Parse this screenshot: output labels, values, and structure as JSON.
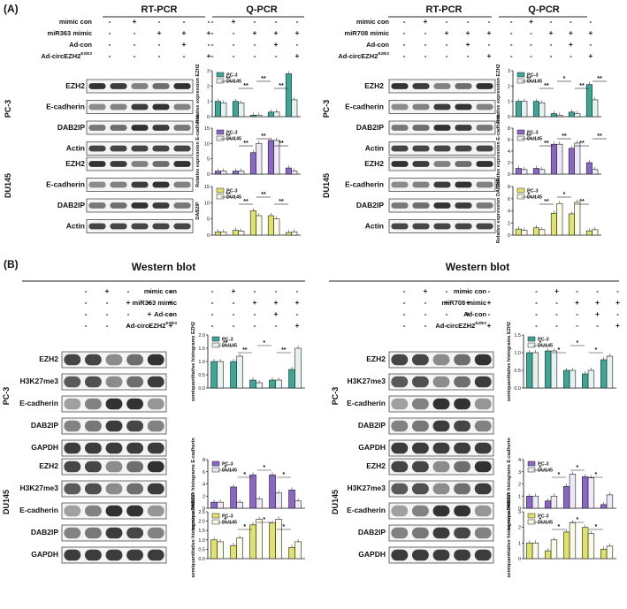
{
  "panel_labels": [
    "(A)",
    "(B)"
  ],
  "rt_pcr_title": "RT-PCR",
  "q_pcr_title": "Q-PCR",
  "western_title": "Western blot",
  "legend": [
    "PC-3",
    "DU145"
  ],
  "cell_lines": [
    "PC-3",
    "DU145"
  ],
  "y_axis_rel": "Relative expression",
  "y_axis_semi": "semiquantitative histograms",
  "top_left": {
    "treatments": [
      {
        "label": "mimic con",
        "signs": [
          "-",
          "+",
          "-",
          "-",
          "-"
        ]
      },
      {
        "label": "miR363 mimic",
        "signs": [
          "-",
          "-",
          "+",
          "+",
          "+"
        ]
      },
      {
        "label": "Ad-con",
        "signs": [
          "-",
          "-",
          "-",
          "+",
          "-"
        ]
      },
      {
        "label": "Ad-circEZH2E2/E3",
        "signs": [
          "-",
          "-",
          "-",
          "-",
          "+"
        ]
      }
    ]
  },
  "top_right": {
    "treatments": [
      {
        "label": "mimic con",
        "signs": [
          "-",
          "+",
          "-",
          "-",
          "-"
        ]
      },
      {
        "label": "miR708 mimic",
        "signs": [
          "-",
          "-",
          "+",
          "+",
          "+"
        ]
      },
      {
        "label": "Ad-con",
        "signs": [
          "-",
          "-",
          "-",
          "+",
          "-"
        ]
      },
      {
        "label": "Ad-circEZH2E2/E3",
        "signs": [
          "-",
          "-",
          "-",
          "-",
          "+"
        ]
      }
    ]
  },
  "bottom_left": {
    "treatments": [
      {
        "label": "mimic con",
        "signs": [
          "-",
          "+",
          "-",
          "-",
          "-"
        ]
      },
      {
        "label": "miR363 mimic",
        "signs": [
          "-",
          "-",
          "+",
          "+",
          "+"
        ]
      },
      {
        "label": "Ad-con",
        "signs": [
          "-",
          "-",
          "-",
          "+",
          "-"
        ]
      },
      {
        "label": "Ad-circEZH2E2/E3",
        "signs": [
          "-",
          "-",
          "-",
          "-",
          "+"
        ]
      }
    ]
  },
  "bottom_right": {
    "treatments": [
      {
        "label": "mimic con",
        "signs": [
          "-",
          "+",
          "-",
          "-",
          "-"
        ]
      },
      {
        "label": "miR708 mimic",
        "signs": [
          "-",
          "-",
          "+",
          "+",
          "+"
        ]
      },
      {
        "label": "Ad-con",
        "signs": [
          "-",
          "-",
          "-",
          "+",
          "-"
        ]
      },
      {
        "label": "Ad-circEZH2E2/E3",
        "signs": [
          "-",
          "-",
          "-",
          "-",
          "+"
        ]
      }
    ]
  },
  "pcr_genes": [
    "EZH2",
    "E-cadherin",
    "DAB2IP",
    "Actin"
  ],
  "wb_pc3_genes": [
    "EZH2",
    "H3K27me3",
    "E-cadherin",
    "DAB2IP",
    "GAPDH"
  ],
  "wb_du_genes": [
    "EZH2",
    "H3K27me3",
    "E-cadherin",
    "DAB2IP",
    "GAPDH"
  ],
  "chart_data": [
    {
      "type": "bar",
      "ylabel": "Relative expression EZH2",
      "ylim": [
        0,
        3
      ],
      "yticks": [
        "0",
        "1",
        "2",
        "3"
      ],
      "series": [
        {
          "name": "PC-3",
          "values": [
            1.0,
            1.0,
            0.1,
            0.3,
            2.8
          ]
        },
        {
          "name": "DU145",
          "values": [
            0.9,
            0.9,
            0.1,
            0.3,
            1.1
          ]
        }
      ],
      "annotations": [
        "**",
        "**",
        "**",
        "**"
      ]
    },
    {
      "type": "bar",
      "ylabel": "Relative expression E-cadherin",
      "ylim": [
        0,
        15
      ],
      "yticks": [
        "0",
        "5",
        "10",
        "15"
      ],
      "series": [
        {
          "name": "PC-3",
          "values": [
            1,
            1,
            7,
            11,
            2
          ]
        },
        {
          "name": "DU145",
          "values": [
            1,
            1,
            10,
            11,
            1
          ]
        }
      ],
      "annotations": [
        "**",
        "**",
        "**",
        "**"
      ]
    },
    {
      "type": "bar",
      "ylabel": "DAB2IP",
      "ylim": [
        0,
        15
      ],
      "yticks": [
        "0",
        "5",
        "10",
        "15"
      ],
      "series": [
        {
          "name": "PC-3",
          "values": [
            1,
            1.5,
            7.5,
            6,
            0.8
          ]
        },
        {
          "name": "DU145",
          "values": [
            1,
            1.2,
            6,
            5,
            1
          ]
        }
      ],
      "annotations": [
        "**",
        "**",
        "**",
        "**"
      ]
    },
    {
      "type": "bar",
      "ylabel": "Relative expression EZH2",
      "ylim": [
        0,
        3
      ],
      "yticks": [
        "0",
        "1",
        "2",
        "3"
      ],
      "series": [
        {
          "name": "PC-3",
          "values": [
            1.0,
            1.0,
            0.2,
            0.3,
            2.1
          ]
        },
        {
          "name": "DU145",
          "values": [
            1.0,
            0.9,
            0.1,
            0.2,
            1.1
          ]
        }
      ],
      "annotations": [
        "**",
        "**",
        "*",
        "**",
        "**"
      ]
    },
    {
      "type": "bar",
      "ylabel": "Relative expression E-cadherin",
      "ylim": [
        0,
        8
      ],
      "yticks": [
        "0",
        "2",
        "4",
        "6",
        "8"
      ],
      "series": [
        {
          "name": "PC-3",
          "values": [
            1,
            1,
            5.2,
            4.5,
            2
          ]
        },
        {
          "name": "DU145",
          "values": [
            0.8,
            0.8,
            5.2,
            5.4,
            0.8
          ]
        }
      ],
      "annotations": [
        "**",
        "**",
        "**",
        "**",
        "**"
      ]
    },
    {
      "type": "bar",
      "ylabel": "Relative expression DAB2IP",
      "ylim": [
        0,
        8
      ],
      "yticks": [
        "0",
        "2",
        "4",
        "6",
        "8"
      ],
      "series": [
        {
          "name": "PC-3",
          "values": [
            1,
            1.2,
            3.6,
            3.5,
            0.7
          ]
        },
        {
          "name": "DU145",
          "values": [
            0.8,
            0.9,
            5.2,
            5.4,
            0.9
          ]
        }
      ],
      "annotations": [
        "*",
        "**",
        "*",
        "**"
      ]
    },
    {
      "type": "bar",
      "ylabel": "semiquantitative histograms EZH2",
      "ylim": [
        0,
        2
      ],
      "yticks": [
        "0.0",
        "0.5",
        "1.0",
        "1.5",
        "2.0"
      ],
      "series": [
        {
          "name": "PC-3",
          "values": [
            1.0,
            1.0,
            0.3,
            0.3,
            0.7
          ]
        },
        {
          "name": "DU145",
          "values": [
            1.0,
            1.2,
            0.2,
            0.3,
            1.5
          ]
        }
      ],
      "annotations": [
        "**",
        "**",
        "*",
        "**"
      ]
    },
    {
      "type": "bar",
      "ylabel": "semiquantitative histograms E-cadherin",
      "ylim": [
        0,
        8
      ],
      "yticks": [
        "0",
        "2",
        "4",
        "6",
        "8"
      ],
      "series": [
        {
          "name": "PC-3",
          "values": [
            1,
            3.5,
            5.5,
            5.5,
            3
          ]
        },
        {
          "name": "DU145",
          "values": [
            1,
            1,
            1.5,
            2.5,
            1.2
          ]
        }
      ],
      "annotations": [
        "*",
        "*",
        "*",
        "*"
      ]
    },
    {
      "type": "bar",
      "ylabel": "semiquantitative histograms DAB2IP",
      "ylim": [
        0,
        2.5
      ],
      "yticks": [
        "0.0",
        "0.5",
        "1.0",
        "1.5",
        "2.0",
        "2.5"
      ],
      "series": [
        {
          "name": "PC-3",
          "values": [
            1.0,
            0.7,
            1.8,
            1.9,
            0.6
          ]
        },
        {
          "name": "DU145",
          "values": [
            0.9,
            1.1,
            2.1,
            2.1,
            0.9
          ]
        }
      ],
      "annotations": [
        "*",
        "*",
        "*",
        "*"
      ]
    },
    {
      "type": "bar",
      "ylabel": "semiquantitative histograms EZH2",
      "ylim": [
        0,
        1.5
      ],
      "yticks": [
        "0.0",
        "0.5",
        "1.0",
        "1.5"
      ],
      "series": [
        {
          "name": "PC-3",
          "values": [
            1.0,
            1.05,
            0.5,
            0.4,
            0.8
          ]
        },
        {
          "name": "DU145",
          "values": [
            1.0,
            1.05,
            0.5,
            0.5,
            0.9
          ]
        }
      ],
      "annotations": [
        "*",
        "*",
        "*",
        "*"
      ]
    },
    {
      "type": "bar",
      "ylabel": "semiquantitative histograms E-cadherin",
      "ylim": [
        0,
        4
      ],
      "yticks": [
        "0",
        "1",
        "2",
        "3",
        "4"
      ],
      "series": [
        {
          "name": "PC-3",
          "values": [
            1,
            0.6,
            1.8,
            2.6,
            0.3
          ]
        },
        {
          "name": "DU145",
          "values": [
            1,
            1,
            2.8,
            2.5,
            1.1
          ]
        }
      ],
      "annotations": [
        "*",
        "*",
        "*",
        "*"
      ]
    },
    {
      "type": "bar",
      "ylabel": "semiquantitative histograms DAB2IP",
      "ylim": [
        0,
        3
      ],
      "yticks": [
        "0",
        "1",
        "2",
        "3"
      ],
      "series": [
        {
          "name": "PC-3",
          "values": [
            1,
            0.5,
            1.7,
            2,
            0.6
          ]
        },
        {
          "name": "DU145",
          "values": [
            1,
            1.2,
            2.3,
            1.6,
            0.8
          ]
        }
      ],
      "annotations": [
        "*",
        "*",
        "*",
        "*"
      ]
    }
  ],
  "colors": {
    "pc3": "#3aa797",
    "du145": "#e6f2ee",
    "pc3_mid": "#8a66c8",
    "du145_mid": "#eee9f7",
    "pc3_low": "#e0e36a",
    "du145_low": "#fafbe6"
  }
}
